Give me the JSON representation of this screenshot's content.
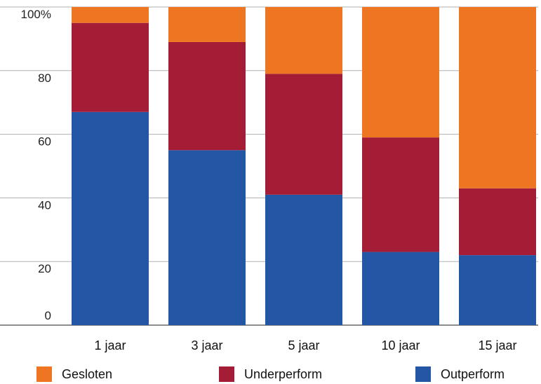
{
  "chart_data": {
    "type": "bar",
    "stacked": true,
    "categories": [
      "1 jaar",
      "3 jaar",
      "5 jaar",
      "10 jaar",
      "15 jaar"
    ],
    "series": [
      {
        "name": "Outperform",
        "color": "#2456a6",
        "values": [
          67,
          55,
          41,
          23,
          22
        ]
      },
      {
        "name": "Underperform",
        "color": "#a51c36",
        "values": [
          28,
          34,
          38,
          36,
          21
        ]
      },
      {
        "name": "Gesloten",
        "color": "#ee7623",
        "values": [
          5,
          11,
          21,
          41,
          57
        ]
      }
    ],
    "yticks": [
      "0",
      "20",
      "40",
      "60",
      "80",
      "100%"
    ],
    "ylim": [
      0,
      100
    ],
    "grid": true,
    "legend_position": "bottom"
  }
}
